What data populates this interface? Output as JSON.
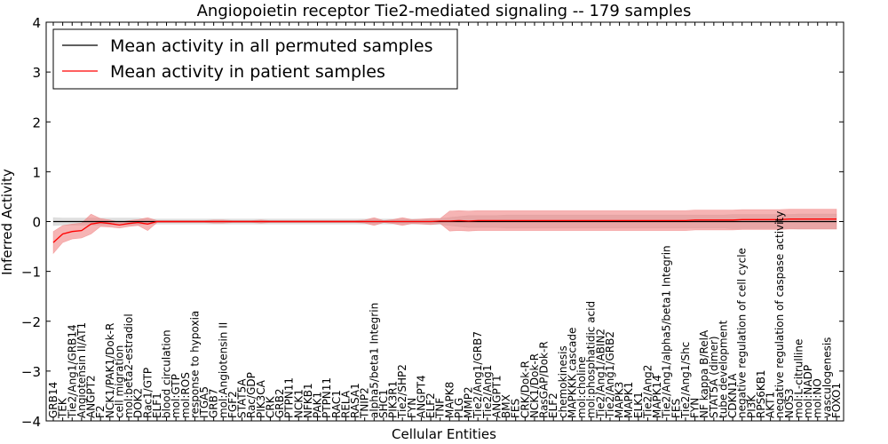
{
  "chart_data": {
    "type": "line",
    "title": "Angiopoietin receptor Tie2-mediated signaling -- 179 samples",
    "xlabel": "Cellular Entities",
    "ylabel": "Inferred Activity",
    "ylim": [
      -4,
      4
    ],
    "yticks": [
      -4,
      -3,
      -2,
      -1,
      0,
      1,
      2,
      3,
      4
    ],
    "legend_position": "top-left",
    "categories": [
      "GRB14",
      "TEK",
      "Tie2/Ang1/GRB14",
      "Angiotensin II/AT1",
      "ANGPT2",
      "F2",
      "NCK1/PAK1/Dok-R",
      "cell migration",
      "mol:beta2-estradiol",
      "DOK2",
      "Rac1/GTP",
      "ELF1",
      "blood circulation",
      "mol:GTP",
      "mol:ROS",
      "response to hypoxia",
      "ITGA5",
      "GRB7",
      "mol:Angiotensin II",
      "FGF2",
      "STAT5A",
      "Rac/GDP",
      "PIK3CA",
      "CRK",
      "GRB2",
      "PTPN11",
      "NCK1",
      "NFKB1",
      "PAK1",
      "PTPN11",
      "RAC1",
      "RELA",
      "RASA1",
      "TNIP2",
      "alpha5/beta1 Integrin",
      "SHC1",
      "PIK3R1",
      "Tie2/SHP2",
      "FYN",
      "ANGPT4",
      "ELF2",
      "TNF",
      "MAPK8",
      "PLG",
      "MMP2",
      "Tie2/Ang1/GRB7",
      "Tie2/Ang1",
      "ANGPT1",
      "BMX",
      "FES",
      "CRK/Dok-R",
      "NCK1/Dok-R",
      "RasGAP/Dok-R",
      "ELF2",
      "chemokinesis",
      "MAPKKK cascade",
      "mol:choline",
      "mol:phosphatidic acid",
      "Tie2/Ang1/ABIN2",
      "Tie2/Ang1/GRB2",
      "MAPK3",
      "MAPK1",
      "ELK1",
      "Tie2/Ang2",
      "MAPK14",
      "Tie2/Ang1/alpha5/beta1 Integrin",
      "FES",
      "Tie2/Ang1/Shc",
      "FYN",
      "NF kappa B/RelA",
      "STAT5A (dimer)",
      "tube development",
      "CDKN1A",
      "negative regulation of cell cycle",
      "PI3K",
      "RPS6KB1",
      "AKT1",
      "negative regulation of caspase activity",
      "NOS3",
      "mol:L-citrulline",
      "mol:NADP",
      "mol:NO",
      "vasculogenesis",
      "FOXO1"
    ],
    "series": [
      {
        "name": "Mean activity in all permuted samples",
        "color": "#000000",
        "band_color": "#bbbbbb",
        "values": [
          0,
          0,
          0,
          0,
          0,
          0,
          0,
          0,
          0,
          0,
          0,
          0,
          0,
          0,
          0,
          0,
          0,
          0,
          0,
          0,
          0,
          0,
          0,
          0,
          0,
          0,
          0,
          0,
          0,
          0,
          0,
          0,
          0,
          0,
          0,
          0,
          0,
          0,
          0,
          0,
          0,
          0,
          0,
          0,
          0,
          0,
          0,
          0,
          0,
          0,
          0,
          0,
          0,
          0,
          0,
          0,
          0,
          0,
          0,
          0,
          0,
          0,
          0,
          0,
          0,
          0,
          0,
          0,
          0,
          0,
          0,
          0,
          0,
          0,
          0,
          0,
          0,
          0,
          0,
          0,
          0,
          0,
          0,
          0
        ],
        "band": [
          0.08,
          0.07,
          0.07,
          0.07,
          0.07,
          0.07,
          0.07,
          0.07,
          0.07,
          0.07,
          0.05,
          0.05,
          0.05,
          0.05,
          0.05,
          0.05,
          0.05,
          0.05,
          0.05,
          0.05,
          0.05,
          0.05,
          0.05,
          0.05,
          0.05,
          0.05,
          0.05,
          0.05,
          0.05,
          0.05,
          0.05,
          0.05,
          0.05,
          0.05,
          0.05,
          0.05,
          0.05,
          0.05,
          0.05,
          0.05,
          0.06,
          0.06,
          0.08,
          0.1,
          0.12,
          0.12,
          0.12,
          0.12,
          0.13,
          0.13,
          0.13,
          0.13,
          0.13,
          0.13,
          0.13,
          0.13,
          0.13,
          0.13,
          0.13,
          0.13,
          0.13,
          0.13,
          0.13,
          0.13,
          0.13,
          0.13,
          0.13,
          0.13,
          0.13,
          0.13,
          0.13,
          0.13,
          0.14,
          0.14,
          0.14,
          0.14,
          0.14,
          0.14,
          0.14,
          0.15,
          0.15,
          0.15,
          0.15,
          0.15
        ]
      },
      {
        "name": "Mean activity in patient samples",
        "color": "#ff0000",
        "band_color": "#ee7777",
        "values": [
          -0.42,
          -0.25,
          -0.2,
          -0.18,
          -0.05,
          -0.02,
          -0.04,
          -0.07,
          -0.04,
          -0.02,
          -0.05,
          0,
          0,
          0,
          0,
          0,
          0,
          0,
          0,
          0,
          0,
          0,
          0,
          0,
          0,
          0,
          0,
          0,
          0,
          0,
          0,
          0,
          0,
          0,
          0,
          0,
          0,
          0,
          0,
          0,
          0,
          0.01,
          0.01,
          0.02,
          0.01,
          0.02,
          0.02,
          0.02,
          0.02,
          0.02,
          0.02,
          0.02,
          0.02,
          0.02,
          0.02,
          0.02,
          0.02,
          0.02,
          0.02,
          0.02,
          0.02,
          0.02,
          0.02,
          0.02,
          0.02,
          0.02,
          0.02,
          0.02,
          0.03,
          0.03,
          0.03,
          0.03,
          0.03,
          0.04,
          0.04,
          0.04,
          0.04,
          0.04,
          0.05,
          0.05,
          0.05,
          0.05,
          0.05,
          0.05
        ],
        "band": [
          0.22,
          0.17,
          0.15,
          0.15,
          0.2,
          0.08,
          0.07,
          0.06,
          0.06,
          0.06,
          0.13,
          0.02,
          0.02,
          0.02,
          0.02,
          0.02,
          0.02,
          0.03,
          0.03,
          0.02,
          0.02,
          0.02,
          0.03,
          0.02,
          0.02,
          0.02,
          0.02,
          0.02,
          0.02,
          0.02,
          0.02,
          0.02,
          0.02,
          0.03,
          0.08,
          0.02,
          0.04,
          0.08,
          0.04,
          0.05,
          0.06,
          0.05,
          0.2,
          0.2,
          0.2,
          0.2,
          0.2,
          0.2,
          0.2,
          0.2,
          0.2,
          0.2,
          0.2,
          0.2,
          0.2,
          0.2,
          0.2,
          0.2,
          0.2,
          0.2,
          0.2,
          0.2,
          0.2,
          0.2,
          0.2,
          0.2,
          0.2,
          0.2,
          0.2,
          0.2,
          0.2,
          0.2,
          0.2,
          0.2,
          0.2,
          0.2,
          0.2,
          0.2,
          0.2,
          0.2,
          0.2,
          0.2,
          0.2,
          0.2
        ]
      }
    ]
  }
}
